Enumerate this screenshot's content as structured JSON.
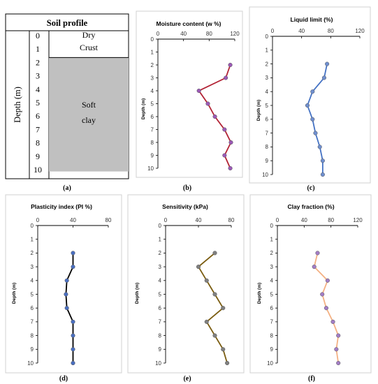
{
  "soil_profile": {
    "title": "Soil profile",
    "ylabel": "Depth (m)",
    "depth_ticks": [
      "0",
      "1",
      "2",
      "3",
      "4",
      "5",
      "6",
      "7",
      "8",
      "9",
      "10"
    ],
    "layers": [
      {
        "lines": [
          "Dry",
          "Crust"
        ],
        "from": 0,
        "to": 2,
        "shaded": false
      },
      {
        "lines": [
          "Soft",
          "clay"
        ],
        "from": 2,
        "to": 10.5,
        "shaded": true
      }
    ],
    "shade_color": "#c0c0c0",
    "panel_label": "(a)"
  },
  "chart_data": [
    {
      "type": "line",
      "title": "Moisture content (w %)",
      "ylabel": "Depth (m)",
      "panel_label": "(b)",
      "xlim": [
        0,
        120
      ],
      "xticks": [
        0,
        40,
        80,
        120
      ],
      "ylim": [
        0,
        10
      ],
      "yticks": [
        0,
        1,
        2,
        3,
        4,
        5,
        6,
        7,
        8,
        9,
        10
      ],
      "axis_position": "top",
      "grid": false,
      "line_color": "#b22234",
      "marker_color": "#9b59b6",
      "series": [
        {
          "points": [
            [
              113,
              2
            ],
            [
              106,
              3
            ],
            [
              64,
              4
            ],
            [
              78,
              5
            ],
            [
              89,
              6
            ],
            [
              104,
              7
            ],
            [
              114,
              8
            ],
            [
              104,
              9
            ],
            [
              113,
              10
            ]
          ]
        }
      ]
    },
    {
      "type": "line",
      "title": "Liquid limit (%)",
      "ylabel": "Depth (m)",
      "panel_label": "(c)",
      "xlim": [
        0,
        120
      ],
      "xticks": [
        0,
        40,
        80,
        120
      ],
      "ylim": [
        0,
        10
      ],
      "yticks": [
        0,
        1,
        2,
        3,
        4,
        5,
        6,
        7,
        8,
        9,
        10
      ],
      "axis_position": "top",
      "grid": false,
      "line_color": "#4472c4",
      "marker_color": "#6f8fcf",
      "series": [
        {
          "points": [
            [
              75,
              2
            ],
            [
              71,
              3
            ],
            [
              55,
              4
            ],
            [
              48,
              5
            ],
            [
              55,
              6
            ],
            [
              59,
              7
            ],
            [
              65,
              8
            ],
            [
              69,
              9
            ],
            [
              69,
              10
            ]
          ]
        }
      ]
    },
    {
      "type": "line",
      "title": "Plasticity index (PI %)",
      "ylabel": "Depth (m)",
      "panel_label": "(d)",
      "xlim": [
        0,
        80
      ],
      "xticks": [
        0,
        40,
        80
      ],
      "ylim": [
        0,
        10
      ],
      "yticks": [
        0,
        1,
        2,
        3,
        4,
        5,
        6,
        7,
        8,
        9,
        10
      ],
      "axis_position": "top",
      "grid": false,
      "line_color": "#000000",
      "marker_color": "#4a6fc0",
      "series": [
        {
          "points": [
            [
              40,
              2
            ],
            [
              40,
              3
            ],
            [
              33,
              4
            ],
            [
              32,
              5
            ],
            [
              33,
              6
            ],
            [
              40,
              7
            ],
            [
              40,
              8
            ],
            [
              40,
              9
            ],
            [
              40,
              10
            ]
          ]
        }
      ]
    },
    {
      "type": "line",
      "title": "Sensitivity  (kPa)",
      "ylabel": "Depth (m)",
      "panel_label": "(e)",
      "xlim": [
        0,
        80
      ],
      "xticks": [
        0,
        40,
        80
      ],
      "ylim": [
        0,
        10
      ],
      "yticks": [
        0,
        1,
        2,
        3,
        4,
        5,
        6,
        7,
        8,
        9,
        10
      ],
      "axis_position": "top",
      "grid": false,
      "line_color": "#7a5c10",
      "marker_color": "#808080",
      "series": [
        {
          "points": [
            [
              60,
              2
            ],
            [
              40,
              3
            ],
            [
              50,
              4
            ],
            [
              60,
              5
            ],
            [
              70,
              6
            ],
            [
              50,
              7
            ],
            [
              60,
              8
            ],
            [
              70,
              9
            ],
            [
              75,
              10
            ]
          ]
        }
      ]
    },
    {
      "type": "line",
      "title": "Clay fraction (%)",
      "ylabel": "Depth (m)",
      "panel_label": "(f)",
      "xlim": [
        0,
        120
      ],
      "xticks": [
        0,
        40,
        80,
        120
      ],
      "ylim": [
        0,
        10
      ],
      "yticks": [
        0,
        1,
        2,
        3,
        4,
        5,
        6,
        7,
        8,
        9,
        10
      ],
      "axis_position": "top",
      "grid": false,
      "line_color": "#f4b183",
      "marker_color": "#a37dc5",
      "series": [
        {
          "points": [
            [
              60,
              2
            ],
            [
              55,
              3
            ],
            [
              75,
              4
            ],
            [
              67,
              5
            ],
            [
              73,
              6
            ],
            [
              83,
              7
            ],
            [
              91,
              8
            ],
            [
              88,
              9
            ],
            [
              91,
              10
            ]
          ]
        }
      ]
    }
  ]
}
